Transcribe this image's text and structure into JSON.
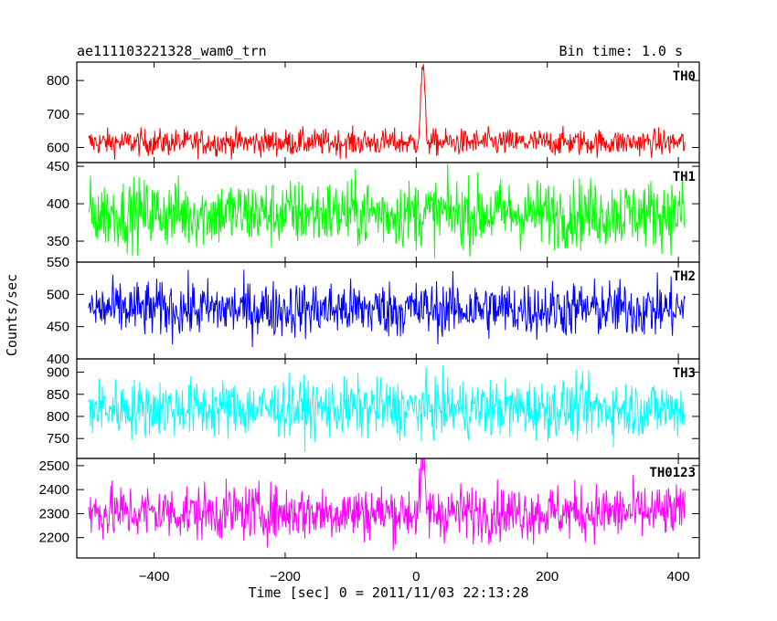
{
  "chart_data": {
    "type": "line",
    "title": "ae111103221328_wam0_trn",
    "bin_time": "Bin time: 1.0 s",
    "xlabel": "Time [sec] 0 = 2011/11/03 22:13:28",
    "ylabel": "Counts/sec",
    "xlim": [
      -518,
      432
    ],
    "xticks": [
      -400,
      -200,
      0,
      200,
      400
    ],
    "x_data_range": [
      -500,
      410
    ],
    "panels": [
      {
        "name": "TH0",
        "color": "#ff0000",
        "ylim": [
          555,
          855
        ],
        "yticks": [
          600,
          700,
          800
        ],
        "ytick_labels": [
          "600",
          "700",
          "800"
        ],
        "baseline": 615,
        "amplitude": 20,
        "peak": {
          "x": 10,
          "value": 845
        }
      },
      {
        "name": "TH1",
        "color": "#00ff00",
        "ylim": [
          322,
          455
        ],
        "yticks": [
          350,
          400,
          450
        ],
        "ytick_labels": [
          "350",
          "400",
          "450"
        ],
        "baseline": 387,
        "amplitude": 23,
        "peak": null
      },
      {
        "name": "TH2",
        "color": "#0000ff",
        "ylim": [
          400,
          550
        ],
        "yticks": [
          400,
          450,
          500,
          550
        ],
        "ytick_labels": [
          "400",
          "450",
          "500",
          "550"
        ],
        "baseline": 477,
        "amplitude": 22,
        "peak": null
      },
      {
        "name": "TH3",
        "color": "#00ffff",
        "ylim": [
          705,
          930
        ],
        "yticks": [
          750,
          800,
          850,
          900
        ],
        "ytick_labels": [
          "750",
          "800",
          "850",
          "900"
        ],
        "baseline": 818,
        "amplitude": 33,
        "peak": null
      },
      {
        "name": "TH0123",
        "color": "#ff00ff",
        "ylim": [
          2115,
          2530
        ],
        "yticks": [
          2200,
          2300,
          2400,
          2500
        ],
        "ytick_labels": [
          "2200",
          "2300",
          "2400",
          "2500"
        ],
        "baseline": 2305,
        "amplitude": 58,
        "peak": {
          "x": 10,
          "value": 2520
        }
      }
    ]
  }
}
